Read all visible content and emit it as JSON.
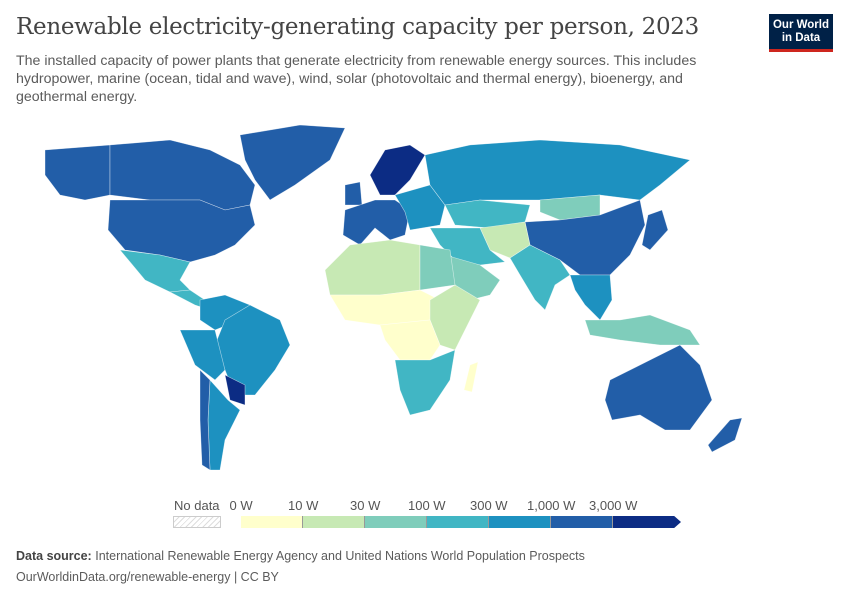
{
  "header": {
    "title": "Renewable electricity-generating capacity per person, 2023",
    "subtitle": "The installed capacity of power plants that generate electricity from renewable energy sources. This includes hydropower, marine (ocean, tidal and wave), wind, solar (photovoltaic and thermal energy), bioenergy, and geothermal energy."
  },
  "logo": {
    "line1": "Our World",
    "line2": "in Data"
  },
  "legend": {
    "no_data_label": "No data",
    "bins": [
      {
        "label": "0 W",
        "color": "#ffffcc"
      },
      {
        "label": "10 W",
        "color": "#c7e9b4"
      },
      {
        "label": "30 W",
        "color": "#7fcdbb"
      },
      {
        "label": "100 W",
        "color": "#41b6c4"
      },
      {
        "label": "300 W",
        "color": "#1d91c0"
      },
      {
        "label": "1,000 W",
        "color": "#225ea8"
      },
      {
        "label": "3,000 W",
        "color": "#0c2c84"
      }
    ]
  },
  "map_data": {
    "regions": [
      {
        "id": "canada",
        "bin": 5
      },
      {
        "id": "alaska",
        "bin": 5
      },
      {
        "id": "greenland",
        "bin": 5
      },
      {
        "id": "usa",
        "bin": 5
      },
      {
        "id": "mexico",
        "bin": 3
      },
      {
        "id": "central-america",
        "bin": 3
      },
      {
        "id": "northern-south-america",
        "bin": 4
      },
      {
        "id": "brazil",
        "bin": 4
      },
      {
        "id": "peru-bolivia",
        "bin": 4
      },
      {
        "id": "argentina",
        "bin": 4
      },
      {
        "id": "chile",
        "bin": 5
      },
      {
        "id": "paraguay-uruguay",
        "bin": 6
      },
      {
        "id": "western-europe",
        "bin": 5
      },
      {
        "id": "scandinavia",
        "bin": 6
      },
      {
        "id": "eastern-europe",
        "bin": 4
      },
      {
        "id": "russia",
        "bin": 4
      },
      {
        "id": "kazakhstan",
        "bin": 3
      },
      {
        "id": "mongolia",
        "bin": 2
      },
      {
        "id": "china",
        "bin": 5
      },
      {
        "id": "japan",
        "bin": 5
      },
      {
        "id": "middle-east",
        "bin": 3
      },
      {
        "id": "arabia",
        "bin": 2
      },
      {
        "id": "central-asia",
        "bin": 1
      },
      {
        "id": "india",
        "bin": 3
      },
      {
        "id": "southeast-asia",
        "bin": 4
      },
      {
        "id": "indonesia",
        "bin": 2
      },
      {
        "id": "north-africa",
        "bin": 1
      },
      {
        "id": "sahel",
        "bin": 0
      },
      {
        "id": "egypt",
        "bin": 2
      },
      {
        "id": "central-africa",
        "bin": 0
      },
      {
        "id": "east-africa",
        "bin": 1
      },
      {
        "id": "southern-africa",
        "bin": 3
      },
      {
        "id": "madagascar",
        "bin": 0
      },
      {
        "id": "australia",
        "bin": 5
      },
      {
        "id": "new-zealand",
        "bin": 5
      },
      {
        "id": "uk-ireland",
        "bin": 5
      }
    ]
  },
  "footer": {
    "source_label": "Data source:",
    "source": "International Renewable Energy Agency and United Nations World Population Prospects",
    "url": "OurWorldinData.org/renewable-energy",
    "license": "CC BY"
  }
}
